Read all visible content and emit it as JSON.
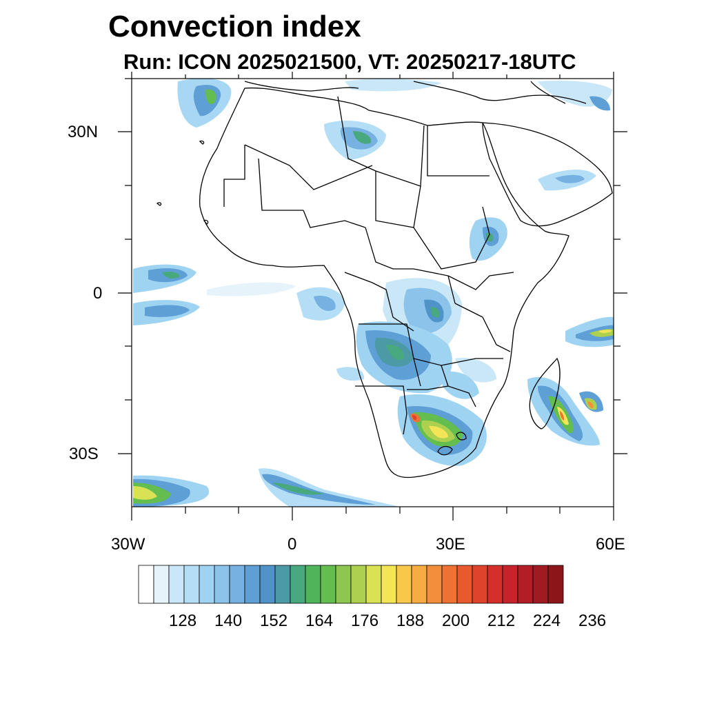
{
  "title": "Convection index",
  "subtitle": "Run: ICON 2025021500,  VT: 20250217-18UTC",
  "axes": {
    "lat_labels": [
      "30N",
      "0",
      "30S"
    ],
    "lon_labels": [
      "30W",
      "0",
      "30E",
      "60E"
    ]
  },
  "colorbar": {
    "tick_labels": [
      "128",
      "140",
      "152",
      "164",
      "176",
      "188",
      "200",
      "212",
      "224",
      "236"
    ],
    "colors": [
      "#ffffff",
      "#e6f3fb",
      "#c9e7f6",
      "#b4def5",
      "#9ed3f2",
      "#8cc3ea",
      "#76b1e2",
      "#5e9fd6",
      "#4f93c9",
      "#4c9aa6",
      "#48a87e",
      "#4fb55a",
      "#63bd4f",
      "#8dc751",
      "#aed04f",
      "#d9e255",
      "#f3e556",
      "#f8c84b",
      "#f6ac42",
      "#f38f3b",
      "#ee7233",
      "#e85a2e",
      "#e0432b",
      "#d52f2c",
      "#c6232b",
      "#b21d26",
      "#9f1a21",
      "#8a1619"
    ]
  }
}
